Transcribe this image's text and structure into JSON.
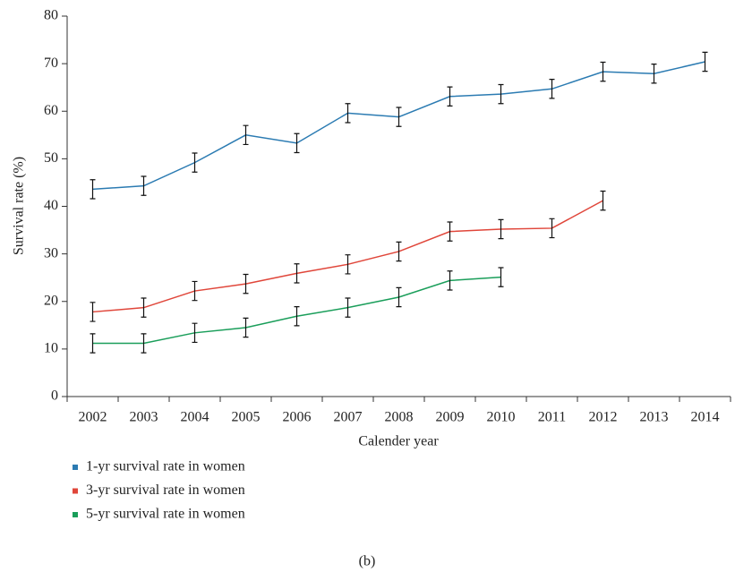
{
  "chart_data": {
    "type": "line",
    "xlabel": "Calender year",
    "ylabel": "Survival rate (%)",
    "caption": "(b)",
    "categories": [
      "2002",
      "2003",
      "2004",
      "2005",
      "2006",
      "2007",
      "2008",
      "2009",
      "2010",
      "2011",
      "2012",
      "2013",
      "2014"
    ],
    "ylim": [
      0,
      80
    ],
    "yticks": [
      0,
      10,
      20,
      30,
      40,
      50,
      60,
      70,
      80
    ],
    "legend": "bottom-left",
    "series": [
      {
        "name": "1-yr survival rate in women",
        "color": "#2b7bb2",
        "values": [
          43.6,
          44.3,
          49.2,
          55.0,
          53.3,
          59.6,
          58.8,
          63.1,
          63.6,
          64.7,
          68.3,
          67.9,
          70.4
        ],
        "errors": [
          2,
          2,
          2,
          2,
          2,
          2,
          2,
          2,
          2,
          2,
          2,
          2,
          2
        ]
      },
      {
        "name": "3-yr survival rate in women",
        "color": "#e0463a",
        "values": [
          17.8,
          18.7,
          22.2,
          23.7,
          25.9,
          27.8,
          30.5,
          34.7,
          35.2,
          35.4,
          41.2,
          null,
          null
        ],
        "errors": [
          2,
          2,
          2,
          2,
          2,
          2,
          2,
          2,
          2,
          2,
          2,
          null,
          null
        ]
      },
      {
        "name": "5-yr survival rate in women",
        "color": "#1a9e5a",
        "values": [
          11.2,
          11.2,
          13.4,
          14.5,
          16.9,
          18.7,
          20.9,
          24.4,
          25.1,
          null,
          null,
          null,
          null
        ],
        "errors": [
          2,
          2,
          2,
          2,
          2,
          2,
          2,
          2,
          2,
          null,
          null,
          null,
          null
        ]
      }
    ]
  }
}
